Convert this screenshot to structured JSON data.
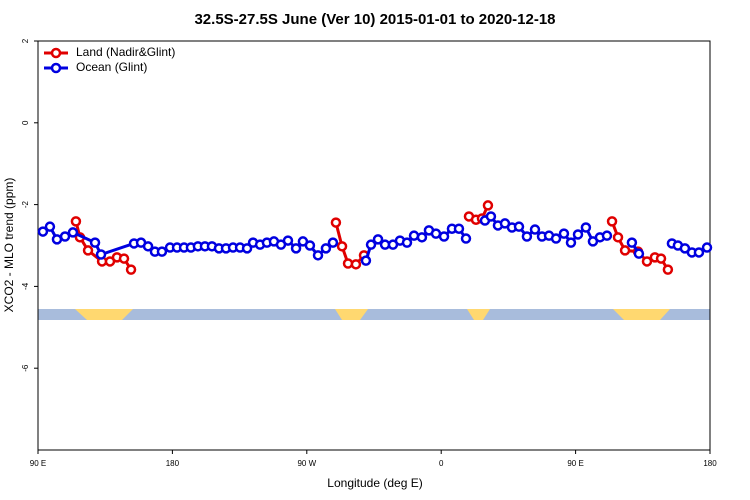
{
  "chart_data": {
    "type": "line",
    "title": "32.5S-27.5S June (Ver 10)   2015-01-01 to 2020-12-18",
    "x_label": "Longitude (deg E)",
    "y_label": "XCO2 - MLO trend (ppm)",
    "xlim": [
      90,
      540
    ],
    "ylim": [
      -8,
      2
    ],
    "xticks": [
      {
        "value": 90,
        "label": "90 E"
      },
      180,
      {
        "value": 270,
        "label": "90 W"
      },
      {
        "value": 360,
        "label": "0"
      },
      {
        "value": 450,
        "label": "90 E"
      },
      {
        "value": 540,
        "label": "180"
      }
    ],
    "yticks": [
      -6,
      -4,
      -2,
      0,
      2
    ],
    "legend": "top-left",
    "series": [
      {
        "name": "Land (Nadir&Glint)",
        "color": "#e00000",
        "x": [
          115.4,
          118.1,
          123.5,
          132.9,
          138.2,
          142.9,
          147.6,
          152.3,
          null,
          289.5,
          293.6,
          297.6,
          302.9,
          308.3,
          null,
          378.6,
          383.3,
          387.3,
          391.3,
          null,
          474.4,
          478.4,
          483.1,
          491.8,
          497.8,
          503.1,
          507.2,
          511.8
        ],
        "values": [
          -2.41,
          -2.8,
          -3.12,
          -3.39,
          -3.39,
          -3.29,
          -3.32,
          -3.59,
          null,
          -2.44,
          -3.02,
          -3.44,
          -3.46,
          -3.24,
          null,
          -2.29,
          -2.37,
          -2.34,
          -2.02,
          null,
          -2.41,
          -2.8,
          -3.12,
          -3.15,
          -3.39,
          -3.29,
          -3.32,
          -3.59
        ]
      },
      {
        "name": "Ocean (Glint)",
        "color": "#0000e0",
        "x": [
          93.3,
          98.0,
          102.7,
          108.1,
          113.4,
          128.2,
          132.2,
          154.3,
          159.0,
          163.7,
          168.3,
          173.0,
          178.4,
          183.1,
          187.8,
          192.4,
          197.1,
          201.8,
          206.5,
          211.2,
          215.9,
          220.6,
          225.3,
          230.0,
          234.0,
          238.7,
          243.3,
          248.0,
          252.7,
          257.4,
          262.8,
          267.4,
          272.1,
          277.5,
          282.8,
          287.5,
          null,
          309.6,
          313.0,
          317.7,
          322.4,
          327.7,
          332.4,
          337.1,
          341.8,
          347.1,
          351.8,
          356.5,
          361.9,
          367.2,
          371.9,
          376.6,
          null,
          389.3,
          393.3,
          398.0,
          402.7,
          407.4,
          412.1,
          417.4,
          422.8,
          427.5,
          432.2,
          436.9,
          442.2,
          446.9,
          451.6,
          456.9,
          461.6,
          466.3,
          471.0,
          null,
          487.7,
          492.4,
          null,
          514.5,
          518.5,
          523.2,
          527.9,
          532.6,
          538.0
        ],
        "values": [
          -2.66,
          -2.54,
          -2.85,
          -2.78,
          -2.68,
          -2.93,
          -3.22,
          -2.95,
          -2.93,
          -3.02,
          -3.15,
          -3.15,
          -3.05,
          -3.05,
          -3.05,
          -3.05,
          -3.02,
          -3.02,
          -3.02,
          -3.07,
          -3.07,
          -3.05,
          -3.05,
          -3.07,
          -2.93,
          -2.98,
          -2.93,
          -2.9,
          -2.98,
          -2.88,
          -3.07,
          -2.9,
          -3.0,
          -3.24,
          -3.07,
          -2.93,
          null,
          -3.37,
          -2.98,
          -2.85,
          -2.98,
          -2.98,
          -2.88,
          -2.93,
          -2.76,
          -2.8,
          -2.63,
          -2.71,
          -2.78,
          -2.59,
          -2.59,
          -2.83,
          null,
          -2.39,
          -2.29,
          -2.51,
          -2.46,
          -2.56,
          -2.54,
          -2.78,
          -2.61,
          -2.78,
          -2.76,
          -2.83,
          -2.71,
          -2.93,
          -2.73,
          -2.56,
          -2.9,
          -2.8,
          -2.76,
          null,
          -2.93,
          -3.2,
          null,
          -2.95,
          -3.0,
          -3.07,
          -3.17,
          -3.17,
          -3.05
        ]
      }
    ]
  }
}
